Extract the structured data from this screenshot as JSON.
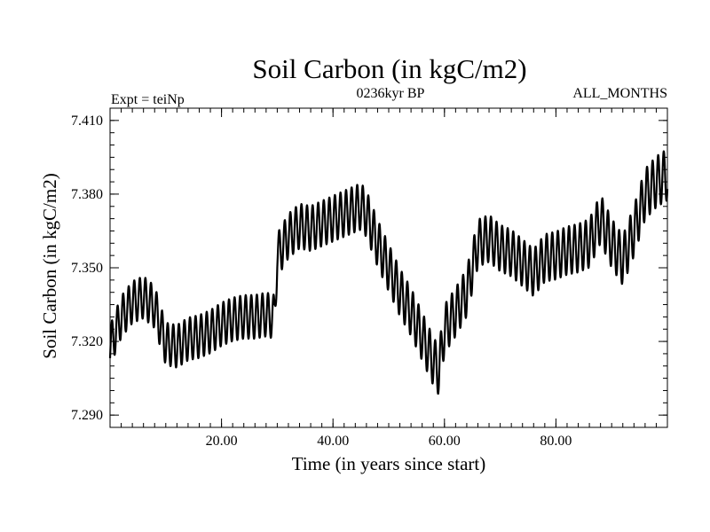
{
  "chart_data": {
    "type": "line",
    "title": "Soil Carbon (in kgC/m2)",
    "subtitle": "0236kyr BP",
    "left_label": "Expt = teiNp",
    "right_label": "ALL_MONTHS",
    "xlabel": "Time (in years since start)",
    "ylabel": "Soil Carbon (in kgC/m2)",
    "xlim": [
      0,
      100
    ],
    "ylim": [
      7.285,
      7.415
    ],
    "x_ticks": [
      20,
      40,
      60,
      80
    ],
    "x_tick_labels": [
      "20.00",
      "40.00",
      "60.00",
      "80.00"
    ],
    "y_ticks": [
      7.29,
      7.32,
      7.35,
      7.38,
      7.41
    ],
    "y_tick_labels": [
      "7.290",
      "7.320",
      "7.350",
      "7.380",
      "7.410"
    ],
    "x_minor_step": 2,
    "y_minor_step": 0.005,
    "seasonal_cycle_period_years": 1,
    "grid": false,
    "series": [
      {
        "name": "Soil Carbon",
        "color": "#000000",
        "annual_mean": {
          "x": [
            0,
            2,
            4,
            6,
            8,
            10,
            12,
            14,
            16,
            18,
            20,
            22,
            24,
            26,
            28,
            29.5,
            30,
            32,
            34,
            36,
            38,
            40,
            42,
            44,
            45,
            46,
            48,
            50,
            52,
            54,
            56,
            58,
            59,
            60,
            62,
            64,
            66,
            68,
            70,
            72,
            74,
            76,
            78,
            80,
            82,
            84,
            86,
            88,
            90,
            92,
            94,
            96,
            98,
            100
          ],
          "y": [
            7.318,
            7.33,
            7.336,
            7.338,
            7.334,
            7.319,
            7.318,
            7.321,
            7.322,
            7.324,
            7.327,
            7.329,
            7.33,
            7.33,
            7.331,
            7.33,
            7.355,
            7.363,
            7.367,
            7.366,
            7.368,
            7.37,
            7.372,
            7.374,
            7.375,
            7.372,
            7.36,
            7.35,
            7.34,
            7.332,
            7.322,
            7.312,
            7.308,
            7.325,
            7.332,
            7.34,
            7.36,
            7.362,
            7.358,
            7.356,
            7.352,
            7.348,
            7.354,
            7.355,
            7.357,
            7.358,
            7.36,
            7.37,
            7.36,
            7.353,
            7.365,
            7.38,
            7.385,
            7.388
          ]
        },
        "seasonal_half_amplitude": {
          "x": [
            0,
            30,
            45,
            60,
            70,
            88,
            100
          ],
          "y": [
            0.0085,
            0.009,
            0.0095,
            0.01,
            0.0095,
            0.01,
            0.0105
          ]
        }
      }
    ]
  }
}
